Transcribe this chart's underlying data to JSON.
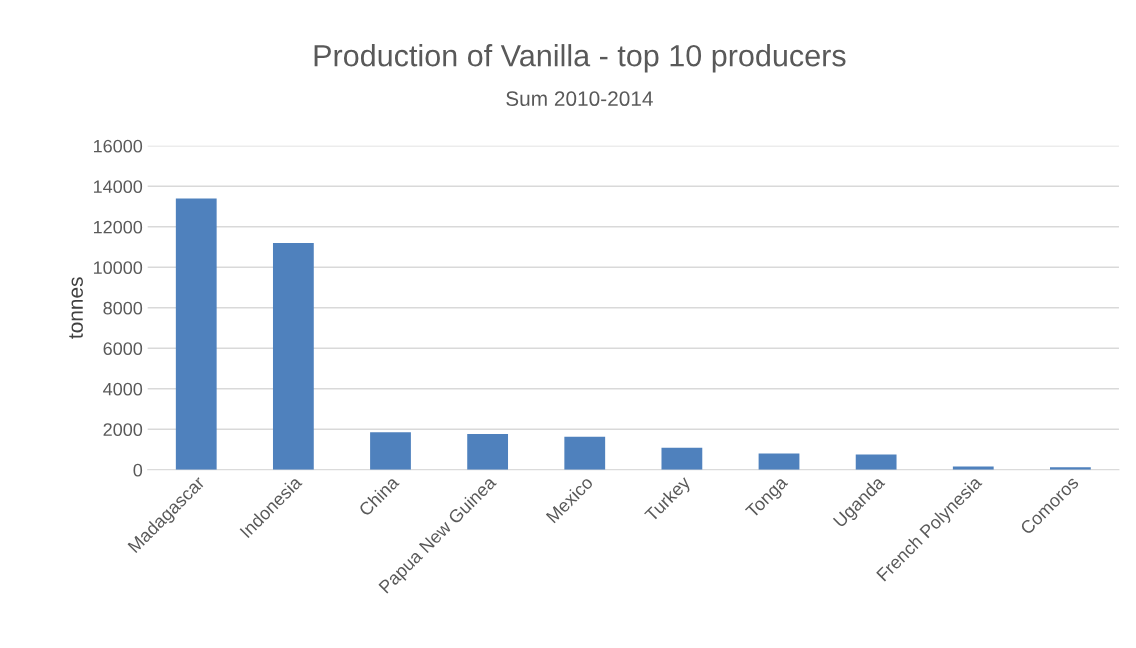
{
  "chart_data": {
    "type": "bar",
    "title": "Production of Vanilla - top 10 producers",
    "subtitle": "Sum 2010-2014",
    "ylabel": "tonnes",
    "categories": [
      "Madagascar",
      "Indonesia",
      "China",
      "Papua New Guinea",
      "Mexico",
      "Turkey",
      "Tonga",
      "Uganda",
      "French Polynesia",
      "Comoros"
    ],
    "values": [
      13400,
      11200,
      1850,
      1770,
      1630,
      1090,
      800,
      750,
      160,
      130
    ],
    "color": "#4f81bd",
    "ylim": [
      0,
      16000
    ],
    "yticks": [
      0,
      2000,
      4000,
      6000,
      8000,
      10000,
      12000,
      14000,
      16000
    ],
    "grid": "y",
    "legend": false
  }
}
